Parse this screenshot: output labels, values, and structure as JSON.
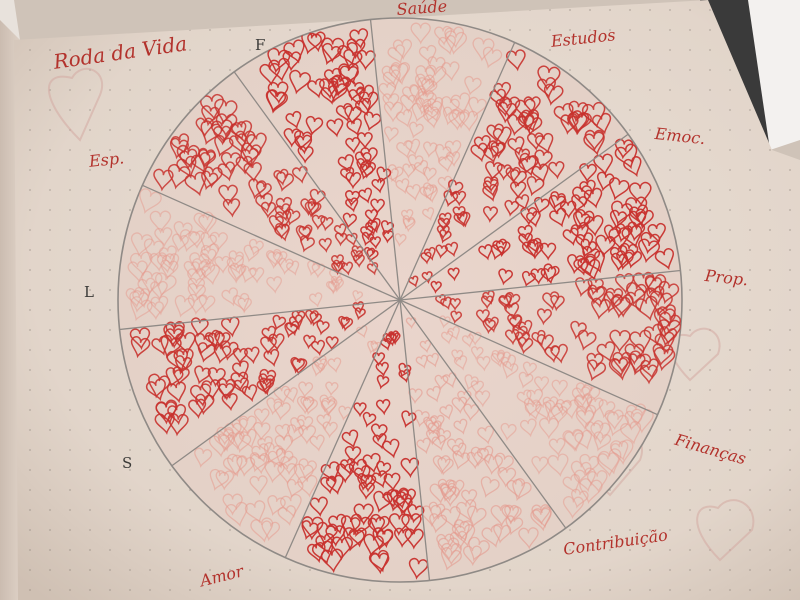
{
  "journal": {
    "title": "Roda da Vida",
    "labels": {
      "f": "F",
      "saude": "Saúde",
      "estudos": "Estudos",
      "emoc": "Emoc.",
      "esp": "Esp.",
      "l": "L",
      "prop": "Prop.",
      "s": "S",
      "financas": "Finanças",
      "amor": "Amor",
      "contribuicao": "Contribuição"
    },
    "colors": {
      "paper": "#e4d8cd",
      "paper_shadow": "#cdbfb2",
      "ink_red": "#c8322e",
      "ink_faint": "#e59a8e",
      "pencil": "#8f8a86"
    }
  }
}
